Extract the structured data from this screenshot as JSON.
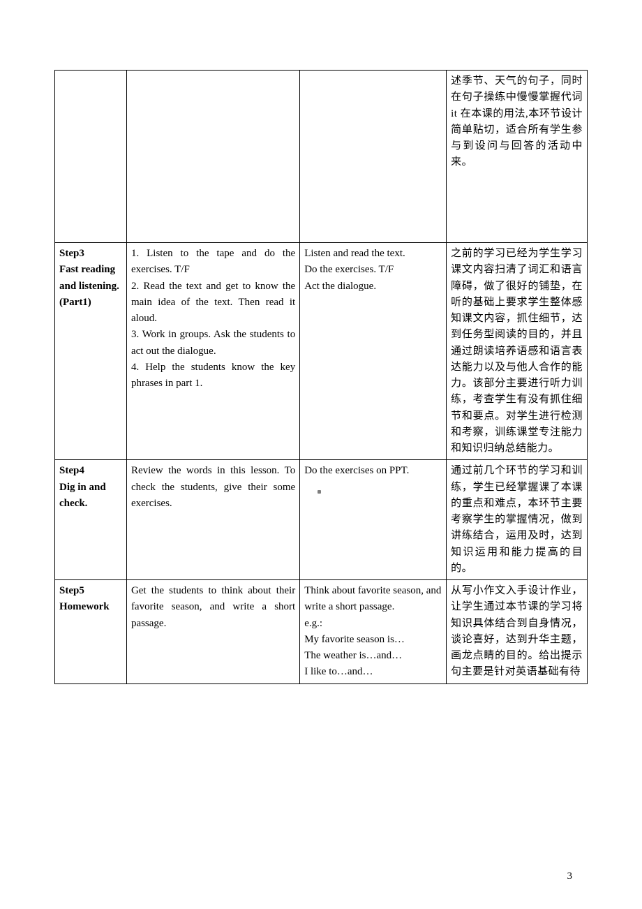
{
  "page_number": "3",
  "rows": [
    {
      "step": "",
      "teacher": "",
      "student": "",
      "intent": "述季节、天气的句子，同时在句子操练中慢慢掌握代词 it 在本课的用法,本环节设计简单贴切，适合所有学生参与到设问与回答的活动中来。"
    },
    {
      "step": "Step3\nFast reading and listening. (Part1)",
      "teacher": "1. Listen to the tape and do the exercises. T/F\n2. Read the text and get to know the main idea of the text. Then read it aloud.\n3. Work in groups. Ask the students to act out the dialogue.\n4. Help the students know the key phrases in part 1.",
      "student": "Listen and read the text.\nDo the exercises. T/F\nAct the dialogue.",
      "intent": "之前的学习已经为学生学习课文内容扫清了词汇和语言障碍，做了很好的铺垫，在听的基础上要求学生整体感知课文内容，抓住细节，达到任务型阅读的目的，并且通过朗读培养语感和语言表达能力以及与他人合作的能力。该部分主要进行听力训练，考查学生有没有抓住细节和要点。对学生进行检测和考察，训练课堂专注能力和知识归纳总结能力。"
    },
    {
      "step": "Step4\nDig in and check.",
      "teacher": "Review the words in this lesson. To check the students, give their some exercises.",
      "student": "Do the exercises on PPT.",
      "intent": "通过前几个环节的学习和训练，学生已经掌握课了本课的重点和难点，本环节主要考察学生的掌握情况，做到讲练结合，运用及时，达到知识运用和能力提高的目的。"
    },
    {
      "step": "Step5\nHomework",
      "teacher": "Get the students to think about their favorite season, and write a short passage.",
      "student": "Think about favorite season, and write a short passage.\ne.g.:\nMy favorite season is…\nThe weather is…and…\nI like to…and…",
      "intent": "从写小作文入手设计作业，让学生通过本节课的学习将知识具体结合到自身情况，谈论喜好，达到升华主题，画龙点睛的目的。给出提示句主要是针对英语基础有待"
    }
  ]
}
